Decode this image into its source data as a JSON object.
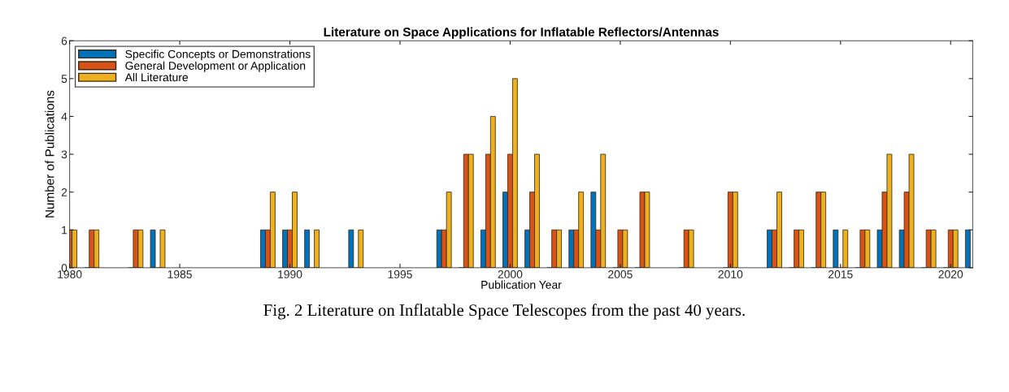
{
  "chart_data": {
    "type": "bar",
    "title": "Literature on Space Applications for Inflatable Reflectors/Antennas",
    "xlabel": "Publication Year",
    "ylabel": "Number of Publications",
    "x": [
      1980,
      1981,
      1983,
      1984,
      1989,
      1990,
      1991,
      1993,
      1997,
      1998,
      1999,
      2000,
      2001,
      2002,
      2003,
      2004,
      2005,
      2006,
      2008,
      2010,
      2012,
      2013,
      2014,
      2015,
      2016,
      2017,
      2018,
      2019,
      2020,
      2021
    ],
    "series": [
      {
        "name": "Specific Concepts or Demonstrations",
        "color": "#0072bd",
        "values": [
          null,
          0,
          0,
          1,
          1,
          1,
          1,
          1,
          1,
          0,
          1,
          2,
          1,
          0,
          1,
          2,
          0,
          0,
          0,
          0,
          1,
          0,
          0,
          1,
          0,
          1,
          1,
          0,
          0,
          1
        ]
      },
      {
        "name": "General Development or Application",
        "color": "#d95319",
        "values": [
          1,
          1,
          1,
          0,
          1,
          1,
          0,
          0,
          1,
          3,
          3,
          3,
          2,
          1,
          1,
          1,
          1,
          2,
          1,
          2,
          1,
          1,
          2,
          0,
          1,
          2,
          2,
          1,
          1,
          null
        ]
      },
      {
        "name": "All Literature",
        "color": "#edb120",
        "values": [
          1,
          1,
          1,
          1,
          2,
          2,
          1,
          1,
          2,
          3,
          4,
          5,
          3,
          1,
          2,
          3,
          1,
          2,
          1,
          2,
          2,
          1,
          2,
          1,
          1,
          3,
          3,
          1,
          1,
          null
        ]
      }
    ],
    "xlim": [
      1980,
      2021
    ],
    "xticks": [
      1980,
      1985,
      1990,
      1995,
      2000,
      2005,
      2010,
      2015,
      2020
    ],
    "ylim": [
      0,
      6
    ],
    "yticks": [
      0,
      1,
      2,
      3,
      4,
      5,
      6
    ],
    "grid": false,
    "legend": "top left",
    "annotations": [
      "Fig. 2 Literature on Inflatable Space Telescopes from the past 40 years."
    ]
  }
}
